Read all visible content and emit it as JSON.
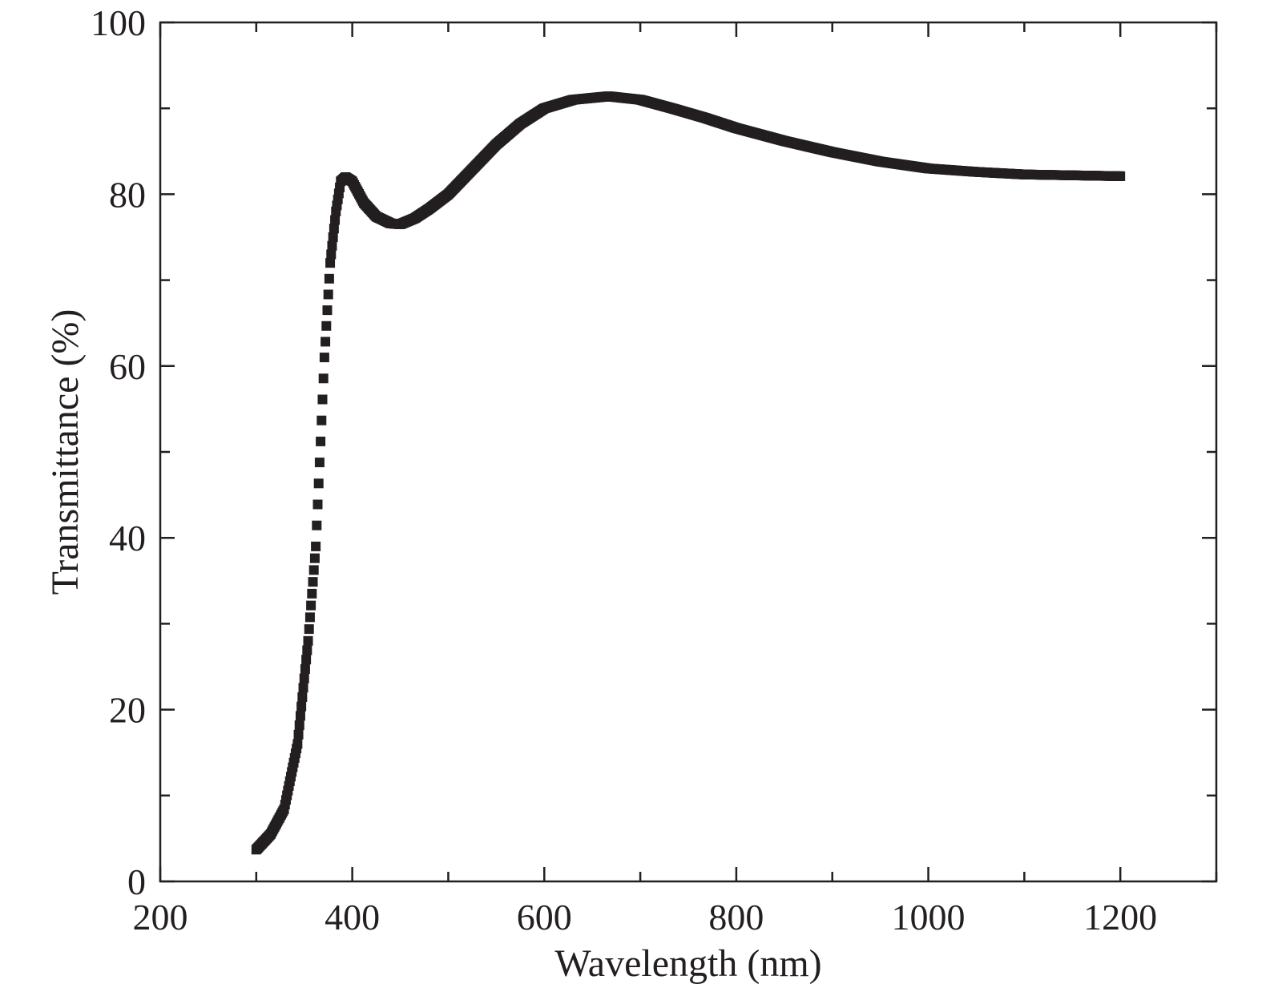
{
  "chart_data": {
    "type": "scatter",
    "title": "",
    "xlabel": "Wavelength (nm)",
    "ylabel": "Transmittance (%)",
    "xlim": [
      200,
      1300
    ],
    "ylim": [
      0,
      100
    ],
    "xticks": [
      200,
      400,
      600,
      800,
      1000,
      1200
    ],
    "xtick_labels": [
      "200",
      "400",
      "600",
      "800",
      "1000",
      "1200"
    ],
    "yticks": [
      0,
      20,
      40,
      60,
      80,
      100
    ],
    "ytick_labels": [
      "0",
      "20",
      "40",
      "60",
      "80",
      "100"
    ],
    "grid": false,
    "legend": "none",
    "marker": "square",
    "color": "#231f20",
    "series": [
      {
        "name": "Transmittance",
        "x": [
          300,
          315,
          329,
          343,
          354,
          362,
          371,
          377,
          383,
          388,
          393,
          400,
          412,
          425,
          440,
          450,
          465,
          480,
          500,
          525,
          550,
          575,
          600,
          630,
          667,
          700,
          733,
          767,
          800,
          850,
          900,
          950,
          1000,
          1050,
          1100,
          1150,
          1200
        ],
        "y": [
          3.7,
          5.5,
          8.4,
          16,
          28,
          39,
          61,
          72,
          78,
          81.5,
          82,
          81.5,
          79,
          77.4,
          76.6,
          76.5,
          77.2,
          78.3,
          80,
          82.9,
          85.8,
          88.2,
          90,
          91,
          91.4,
          91,
          90,
          88.9,
          87.7,
          86.2,
          84.9,
          83.8,
          83,
          82.6,
          82.3,
          82.2,
          82.1
        ]
      }
    ]
  }
}
